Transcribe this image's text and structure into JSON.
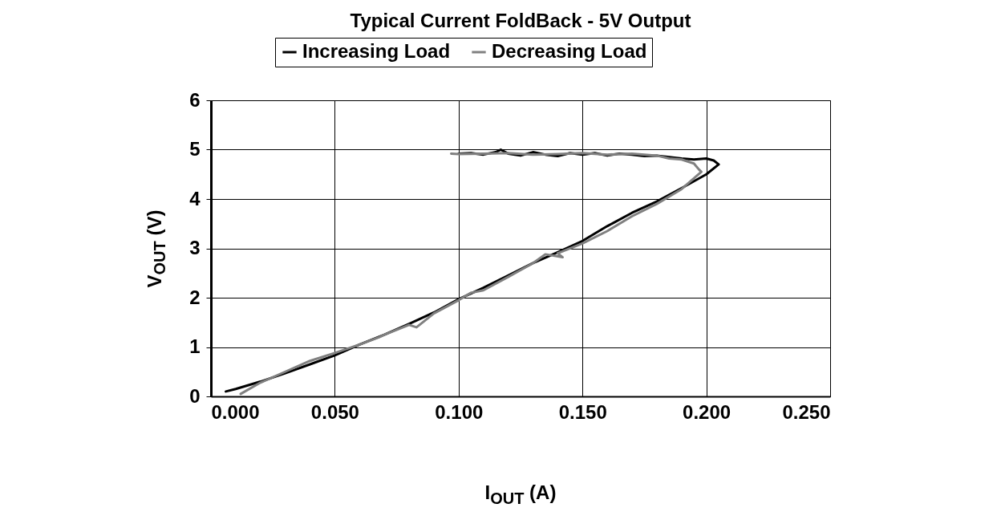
{
  "chart_data": {
    "type": "line",
    "title": "Typical Current FoldBack - 5V Output",
    "xlabel": "I$_{OUT}$ (A)",
    "ylabel": "V$_{OUT}$ (V)",
    "xlim": [
      0,
      0.25
    ],
    "ylim": [
      0,
      6
    ],
    "xticks": [
      {
        "value": 0,
        "label": "0.000"
      },
      {
        "value": 0.05,
        "label": "0.050"
      },
      {
        "value": 0.1,
        "label": "0.100"
      },
      {
        "value": 0.15,
        "label": "0.150"
      },
      {
        "value": 0.2,
        "label": "0.200"
      },
      {
        "value": 0.25,
        "label": "0.250"
      }
    ],
    "yticks": [
      0,
      1,
      2,
      3,
      4,
      5,
      6
    ],
    "grid": true,
    "legend": "top",
    "line_style": "solid",
    "marker": "none",
    "series": [
      {
        "name": "Increasing Load",
        "color": "#000000",
        "x": [
          0.1,
          0.105,
          0.11,
          0.115,
          0.117,
          0.12,
          0.125,
          0.13,
          0.135,
          0.14,
          0.145,
          0.15,
          0.155,
          0.16,
          0.165,
          0.17,
          0.175,
          0.18,
          0.185,
          0.19,
          0.195,
          0.2,
          0.203,
          0.205,
          0.2,
          0.19,
          0.18,
          0.17,
          0.16,
          0.15,
          0.14,
          0.13,
          0.12,
          0.11,
          0.1,
          0.09,
          0.08,
          0.07,
          0.06,
          0.05,
          0.04,
          0.03,
          0.02,
          0.01,
          0.006
        ],
        "values": [
          4.92,
          4.93,
          4.9,
          4.95,
          5.0,
          4.92,
          4.88,
          4.95,
          4.9,
          4.87,
          4.93,
          4.9,
          4.93,
          4.88,
          4.92,
          4.9,
          4.87,
          4.88,
          4.85,
          4.82,
          4.8,
          4.82,
          4.78,
          4.7,
          4.5,
          4.22,
          3.95,
          3.72,
          3.45,
          3.15,
          2.92,
          2.7,
          2.45,
          2.2,
          1.97,
          1.7,
          1.47,
          1.25,
          1.05,
          0.83,
          0.65,
          0.47,
          0.3,
          0.15,
          0.1
        ]
      },
      {
        "name": "Decreasing Load",
        "color": "#808080",
        "x": [
          0.012,
          0.02,
          0.03,
          0.04,
          0.05,
          0.06,
          0.068,
          0.07,
          0.08,
          0.083,
          0.09,
          0.1,
          0.105,
          0.11,
          0.12,
          0.13,
          0.135,
          0.142,
          0.14,
          0.15,
          0.16,
          0.17,
          0.18,
          0.19,
          0.198,
          0.197,
          0.195,
          0.19,
          0.185,
          0.18,
          0.175,
          0.17,
          0.16,
          0.15,
          0.14,
          0.13,
          0.12,
          0.11,
          0.1,
          0.097
        ],
        "values": [
          0.05,
          0.28,
          0.5,
          0.72,
          0.88,
          1.05,
          1.2,
          1.25,
          1.45,
          1.4,
          1.68,
          1.95,
          2.1,
          2.15,
          2.42,
          2.7,
          2.88,
          2.82,
          2.9,
          3.1,
          3.35,
          3.65,
          3.9,
          4.2,
          4.55,
          4.6,
          4.72,
          4.8,
          4.82,
          4.88,
          4.9,
          4.92,
          4.9,
          4.93,
          4.91,
          4.9,
          4.93,
          4.92,
          4.91,
          4.92
        ]
      }
    ]
  }
}
